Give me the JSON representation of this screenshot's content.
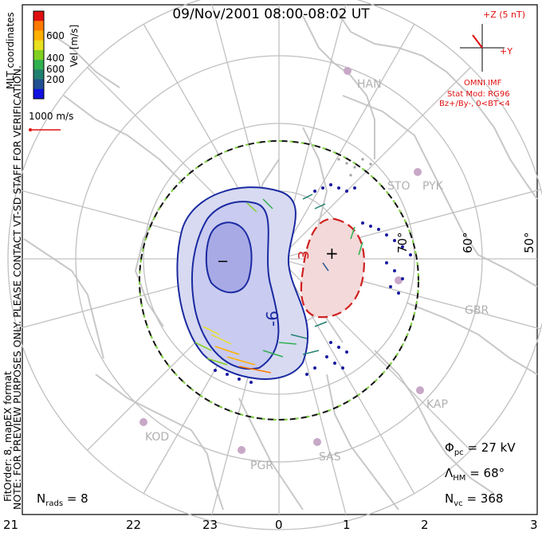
{
  "title": "09/Nov/2001 08:00-08:02 UT",
  "colorbar": {
    "label": "Vel [m/s]",
    "ticks": [
      "600",
      "400",
      "200"
    ],
    "colors": [
      "#e01010",
      "#ff7a00",
      "#ffb000",
      "#e8e020",
      "#80d020",
      "#30b050",
      "#208070",
      "#205090",
      "#1010e0"
    ]
  },
  "coords_label": "MLT coordinates",
  "scale_vector": "1000 m/s",
  "imf": {
    "bz_label": "+Z (5 nT)",
    "by_label": "+Y",
    "source": "OMNI IMF",
    "model": "Stat Mod: RG96",
    "condition": "Bz+/By-, 0<BT<4"
  },
  "note": "NOTE: FOR PREVIEW PURPOSES ONLY. PLEASE CONTACT VT-SD STAFF FOR VERIFICATION.",
  "fit_order": "FitOrder: 8, mapEX format",
  "stations": [
    "HAN",
    "STO",
    "PYK",
    "GBR",
    "KAP",
    "SAS",
    "PGR",
    "KOD"
  ],
  "latitude_labels": [
    "70°",
    "60°",
    "50°"
  ],
  "mlt_labels": [
    "21",
    "22",
    "23",
    "0",
    "1",
    "2",
    "3"
  ],
  "contours": {
    "minus": "−",
    "plus": "+",
    "value_neg": "-6",
    "value_pos": "3"
  },
  "stats": {
    "phi_symbol": "Φ",
    "phi_sub": "pc",
    "phi_value": "= 27 kV",
    "lambda_symbol": "Λ",
    "lambda_sub": "HM",
    "lambda_value": "= 68°",
    "nvc_symbol": "N",
    "nvc_sub": "vc",
    "nvc_value": "= 368",
    "nrads_symbol": "N",
    "nrads_sub": "rads",
    "nrads_value": "= 8"
  }
}
